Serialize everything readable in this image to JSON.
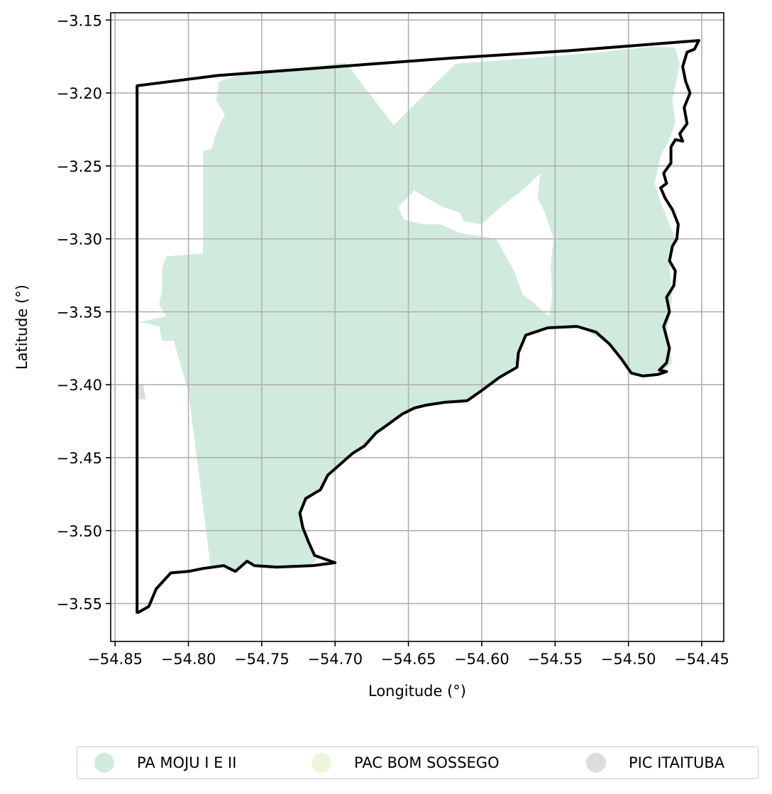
{
  "map": {
    "xlabel": "Longitude (°)",
    "ylabel": "Latitude (°)",
    "xlim": [
      -54.853,
      -54.435
    ],
    "ylim": [
      -3.576,
      -3.145
    ],
    "x_ticks": [
      -54.85,
      -54.8,
      -54.75,
      -54.7,
      -54.65,
      -54.6,
      -54.55,
      -54.5,
      -54.45
    ],
    "x_tick_labels": [
      "−54.85",
      "−54.80",
      "−54.75",
      "−54.70",
      "−54.65",
      "−54.60",
      "−54.55",
      "−54.50",
      "−54.45"
    ],
    "y_ticks": [
      -3.15,
      -3.2,
      -3.25,
      -3.3,
      -3.35,
      -3.4,
      -3.45,
      -3.5,
      -3.55
    ],
    "y_tick_labels": [
      "−3.15",
      "−3.20",
      "−3.25",
      "−3.30",
      "−3.35",
      "−3.40",
      "−3.45",
      "−3.50",
      "−3.55"
    ],
    "grid": true,
    "legend_position": "bottom-center, outside plot",
    "fill_polygons": [
      {
        "settlement": "PA MOJU I E II",
        "color": "#d0ebdd",
        "coords": [
          [
            -54.779,
            -3.192
          ],
          [
            -54.76,
            -3.186
          ],
          [
            -54.735,
            -3.184
          ],
          [
            -54.715,
            -3.182
          ],
          [
            -54.693,
            -3.179
          ],
          [
            -54.66,
            -3.222
          ],
          [
            -54.618,
            -3.18
          ],
          [
            -54.567,
            -3.176
          ],
          [
            -54.52,
            -3.172
          ],
          [
            -54.482,
            -3.168
          ],
          [
            -54.468,
            -3.169
          ],
          [
            -54.465,
            -3.18
          ],
          [
            -54.47,
            -3.205
          ],
          [
            -54.468,
            -3.22
          ],
          [
            -54.472,
            -3.232
          ],
          [
            -54.478,
            -3.243
          ],
          [
            -54.482,
            -3.262
          ],
          [
            -54.478,
            -3.275
          ],
          [
            -54.472,
            -3.29
          ],
          [
            -54.468,
            -3.3
          ],
          [
            -54.472,
            -3.32
          ],
          [
            -54.47,
            -3.34
          ],
          [
            -54.474,
            -3.365
          ],
          [
            -54.47,
            -3.385
          ],
          [
            -54.476,
            -3.39
          ],
          [
            -54.483,
            -3.395
          ],
          [
            -54.497,
            -3.393
          ],
          [
            -54.503,
            -3.385
          ],
          [
            -54.51,
            -3.375
          ],
          [
            -54.53,
            -3.362
          ],
          [
            -54.55,
            -3.36
          ],
          [
            -54.568,
            -3.364
          ],
          [
            -54.574,
            -3.375
          ],
          [
            -54.576,
            -3.385
          ],
          [
            -54.591,
            -3.398
          ],
          [
            -54.605,
            -3.407
          ],
          [
            -54.612,
            -3.413
          ],
          [
            -54.628,
            -3.412
          ],
          [
            -54.64,
            -3.415
          ],
          [
            -54.648,
            -3.416
          ],
          [
            -54.655,
            -3.42
          ],
          [
            -54.666,
            -3.428
          ],
          [
            -54.672,
            -3.433
          ],
          [
            -54.68,
            -3.442
          ],
          [
            -54.69,
            -3.448
          ],
          [
            -54.697,
            -3.455
          ],
          [
            -54.705,
            -3.462
          ],
          [
            -54.711,
            -3.473
          ],
          [
            -54.723,
            -3.482
          ],
          [
            -54.724,
            -3.493
          ],
          [
            -54.72,
            -3.505
          ],
          [
            -54.716,
            -3.512
          ],
          [
            -54.713,
            -3.52
          ],
          [
            -54.716,
            -3.524
          ],
          [
            -54.735,
            -3.525
          ],
          [
            -54.75,
            -3.524
          ],
          [
            -54.76,
            -3.521
          ],
          [
            -54.768,
            -3.527
          ],
          [
            -54.775,
            -3.524
          ],
          [
            -54.785,
            -3.524
          ],
          [
            -54.8,
            -3.405
          ],
          [
            -54.81,
            -3.37
          ],
          [
            -54.818,
            -3.37
          ],
          [
            -54.82,
            -3.36
          ],
          [
            -54.833,
            -3.357
          ],
          [
            -54.815,
            -3.353
          ],
          [
            -54.82,
            -3.345
          ],
          [
            -54.818,
            -3.335
          ],
          [
            -54.818,
            -3.32
          ],
          [
            -54.815,
            -3.312
          ],
          [
            -54.79,
            -3.31
          ],
          [
            -54.79,
            -3.24
          ],
          [
            -54.784,
            -3.238
          ],
          [
            -54.782,
            -3.23
          ],
          [
            -54.778,
            -3.22
          ],
          [
            -54.775,
            -3.215
          ],
          [
            -54.781,
            -3.205
          ]
        ],
        "holes": [
          [
            [
              -54.646,
              -3.267
            ],
            [
              -54.627,
              -3.278
            ],
            [
              -54.615,
              -3.282
            ],
            [
              -54.612,
              -3.288
            ],
            [
              -54.6,
              -3.29
            ],
            [
              -54.587,
              -3.278
            ],
            [
              -54.574,
              -3.268
            ],
            [
              -54.563,
              -3.258
            ],
            [
              -54.56,
              -3.255
            ],
            [
              -54.562,
              -3.272
            ],
            [
              -54.557,
              -3.282
            ],
            [
              -54.551,
              -3.3
            ],
            [
              -54.553,
              -3.318
            ],
            [
              -54.552,
              -3.34
            ],
            [
              -54.554,
              -3.353
            ],
            [
              -54.572,
              -3.338
            ],
            [
              -54.578,
              -3.322
            ],
            [
              -54.59,
              -3.3
            ],
            [
              -54.615,
              -3.296
            ],
            [
              -54.628,
              -3.29
            ],
            [
              -54.64,
              -3.29
            ],
            [
              -54.653,
              -3.287
            ],
            [
              -54.657,
              -3.278
            ]
          ]
        ]
      },
      {
        "settlement": "PIC ITAITUBA",
        "color": "#dddddd",
        "coords": [
          [
            -54.836,
            -3.4
          ],
          [
            -54.831,
            -3.4
          ],
          [
            -54.829,
            -3.41
          ],
          [
            -54.836,
            -3.41
          ]
        ]
      }
    ],
    "boundary": {
      "color": "#000000",
      "coords": [
        [
          -54.835,
          -3.195
        ],
        [
          -54.78,
          -3.188
        ],
        [
          -54.7,
          -3.182
        ],
        [
          -54.62,
          -3.176
        ],
        [
          -54.54,
          -3.171
        ],
        [
          -54.452,
          -3.164
        ],
        [
          -54.455,
          -3.17
        ],
        [
          -54.46,
          -3.172
        ],
        [
          -54.463,
          -3.182
        ],
        [
          -54.461,
          -3.192
        ],
        [
          -54.458,
          -3.2
        ],
        [
          -54.462,
          -3.21
        ],
        [
          -54.46,
          -3.221
        ],
        [
          -54.465,
          -3.228
        ],
        [
          -54.463,
          -3.233
        ],
        [
          -54.468,
          -3.232
        ],
        [
          -54.471,
          -3.237
        ],
        [
          -54.471,
          -3.248
        ],
        [
          -54.476,
          -3.255
        ],
        [
          -54.474,
          -3.262
        ],
        [
          -54.478,
          -3.265
        ],
        [
          -54.475,
          -3.272
        ],
        [
          -54.47,
          -3.28
        ],
        [
          -54.466,
          -3.29
        ],
        [
          -54.467,
          -3.3
        ],
        [
          -54.47,
          -3.305
        ],
        [
          -54.472,
          -3.315
        ],
        [
          -54.468,
          -3.322
        ],
        [
          -54.469,
          -3.332
        ],
        [
          -54.474,
          -3.34
        ],
        [
          -54.472,
          -3.35
        ],
        [
          -54.476,
          -3.36
        ],
        [
          -54.472,
          -3.375
        ],
        [
          -54.474,
          -3.385
        ],
        [
          -54.479,
          -3.39
        ],
        [
          -54.474,
          -3.391
        ],
        [
          -54.48,
          -3.393
        ],
        [
          -54.49,
          -3.394
        ],
        [
          -54.498,
          -3.392
        ],
        [
          -54.505,
          -3.382
        ],
        [
          -54.513,
          -3.372
        ],
        [
          -54.522,
          -3.364
        ],
        [
          -54.535,
          -3.36
        ],
        [
          -54.555,
          -3.361
        ],
        [
          -54.57,
          -3.366
        ],
        [
          -54.575,
          -3.378
        ],
        [
          -54.576,
          -3.388
        ],
        [
          -54.588,
          -3.395
        ],
        [
          -54.6,
          -3.404
        ],
        [
          -54.61,
          -3.411
        ],
        [
          -54.625,
          -3.412
        ],
        [
          -54.638,
          -3.414
        ],
        [
          -54.646,
          -3.416
        ],
        [
          -54.654,
          -3.42
        ],
        [
          -54.665,
          -3.428
        ],
        [
          -54.672,
          -3.433
        ],
        [
          -54.68,
          -3.442
        ],
        [
          -54.688,
          -3.447
        ],
        [
          -54.697,
          -3.455
        ],
        [
          -54.705,
          -3.462
        ],
        [
          -54.71,
          -3.472
        ],
        [
          -54.72,
          -3.478
        ],
        [
          -54.724,
          -3.488
        ],
        [
          -54.722,
          -3.498
        ],
        [
          -54.718,
          -3.508
        ],
        [
          -54.714,
          -3.517
        ],
        [
          -54.7,
          -3.522
        ],
        [
          -54.715,
          -3.524
        ],
        [
          -54.74,
          -3.525
        ],
        [
          -54.755,
          -3.524
        ],
        [
          -54.76,
          -3.521
        ],
        [
          -54.768,
          -3.528
        ],
        [
          -54.776,
          -3.524
        ],
        [
          -54.79,
          -3.526
        ],
        [
          -54.8,
          -3.528
        ],
        [
          -54.812,
          -3.529
        ],
        [
          -54.822,
          -3.54
        ],
        [
          -54.827,
          -3.552
        ],
        [
          -54.834,
          -3.556
        ],
        [
          -54.835,
          -3.556
        ]
      ],
      "closed": true
    }
  },
  "legend": {
    "items": [
      {
        "label": "PA MOJU I E II",
        "color": "#d0ebdd"
      },
      {
        "label": "PAC BOM SOSSEGO",
        "color": "#ebf7dd"
      },
      {
        "label": "PIC ITAITUBA",
        "color": "#dddddd"
      }
    ]
  }
}
